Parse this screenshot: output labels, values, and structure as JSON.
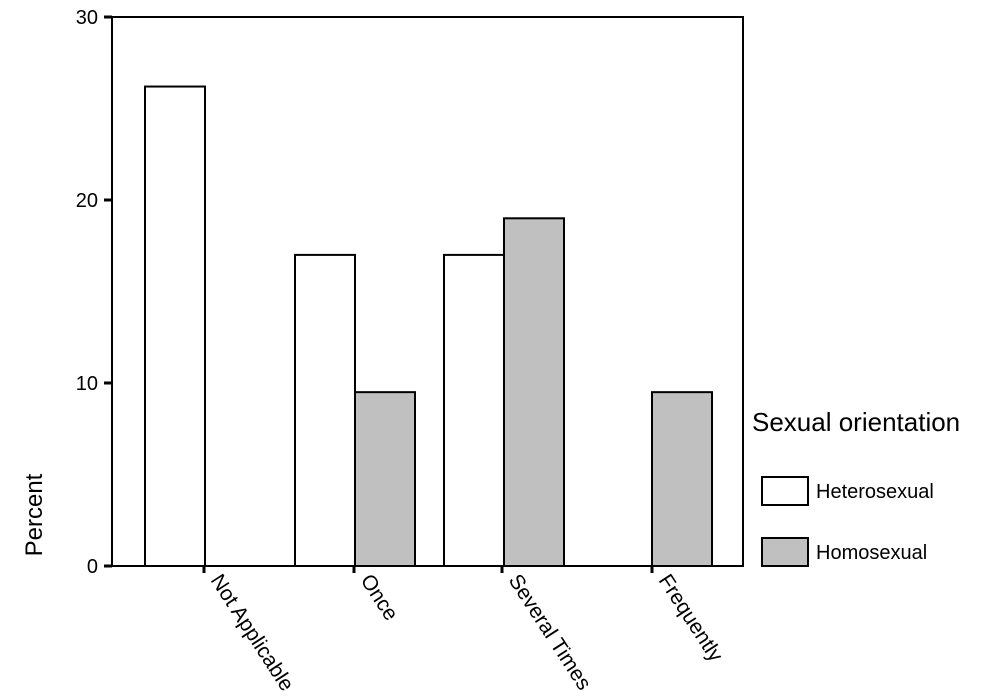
{
  "chart_data": {
    "type": "bar",
    "title": "",
    "xlabel": "",
    "ylabel": "Percent",
    "ylim": [
      0,
      30
    ],
    "yticks": [
      "0",
      "10",
      "20",
      "30"
    ],
    "categories": [
      "Not Applicable",
      "Once",
      "Several Times",
      "Frequently"
    ],
    "series": [
      {
        "name": "Heterosexual",
        "values": [
          26.2,
          17.0,
          17.0,
          0
        ],
        "color": "#ffffff"
      },
      {
        "name": "Homosexual",
        "values": [
          0,
          9.5,
          19.0,
          9.5
        ],
        "color": "#c0c0c0"
      }
    ],
    "legend": {
      "title": "Sexual orientation",
      "position": "right",
      "entries": [
        "Heterosexual",
        "Homosexual"
      ]
    },
    "grid": false
  }
}
